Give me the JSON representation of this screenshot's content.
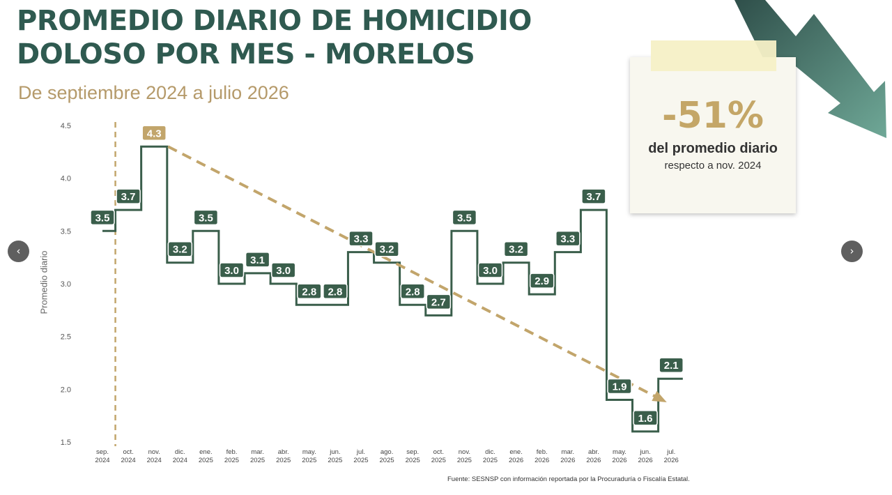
{
  "title_line1": "PROMEDIO DIARIO DE HOMICIDIO",
  "title_line2": "DOLOSO POR MES - MORELOS",
  "subtitle": "De septiembre 2024 a julio 2026",
  "note": {
    "percent": "-51%",
    "line1": "del promedio diario",
    "line2": "respecto a nov. 2024"
  },
  "source": "Fuente: SESNSP con información reportada por la Procuraduría o Fiscalía Estatal.",
  "nav": {
    "prev": "‹",
    "next": "›"
  },
  "colors": {
    "line": "#3a5e4b",
    "trend": "#c2a56b",
    "title": "#2f5a50",
    "highlight": "#c2a56b"
  },
  "chart_data": {
    "type": "line",
    "step": true,
    "ylabel": "Promedio diario",
    "ylim": [
      1.5,
      4.5
    ],
    "yticks": [
      "1.5",
      "2.0",
      "2.5",
      "3.0",
      "3.5",
      "4.0",
      "4.5"
    ],
    "categories": [
      [
        "sep.",
        "2024"
      ],
      [
        "oct.",
        "2024"
      ],
      [
        "nov.",
        "2024"
      ],
      [
        "dic.",
        "2024"
      ],
      [
        "ene.",
        "2025"
      ],
      [
        "feb.",
        "2025"
      ],
      [
        "mar.",
        "2025"
      ],
      [
        "abr.",
        "2025"
      ],
      [
        "may.",
        "2025"
      ],
      [
        "jun.",
        "2025"
      ],
      [
        "jul.",
        "2025"
      ],
      [
        "ago.",
        "2025"
      ],
      [
        "sep.",
        "2025"
      ],
      [
        "oct.",
        "2025"
      ],
      [
        "nov.",
        "2025"
      ],
      [
        "dic.",
        "2025"
      ],
      [
        "ene.",
        "2026"
      ],
      [
        "feb.",
        "2026"
      ],
      [
        "mar.",
        "2026"
      ],
      [
        "abr.",
        "2026"
      ],
      [
        "may.",
        "2026"
      ],
      [
        "jun.",
        "2026"
      ],
      [
        "jul.",
        "2026"
      ]
    ],
    "values": [
      3.5,
      3.7,
      4.3,
      3.2,
      3.5,
      3.0,
      3.1,
      3.0,
      2.8,
      2.8,
      3.3,
      3.2,
      2.8,
      2.7,
      3.5,
      3.0,
      3.2,
      2.9,
      3.3,
      3.7,
      1.9,
      1.6,
      2.1
    ],
    "labels": [
      "3.5",
      "3.7",
      "4.3",
      "3.2",
      "3.5",
      "3.0",
      "3.1",
      "3.0",
      "2.8",
      "2.8",
      "3.3",
      "3.2",
      "2.8",
      "2.7",
      "3.5",
      "3.0",
      "3.2",
      "2.9",
      "3.3",
      "3.7",
      "1.9",
      "1.6",
      "2.1"
    ],
    "highlight_index": 2,
    "trend_from_index": 2,
    "trend_to_index": 22,
    "reference_line_index": 0
  }
}
